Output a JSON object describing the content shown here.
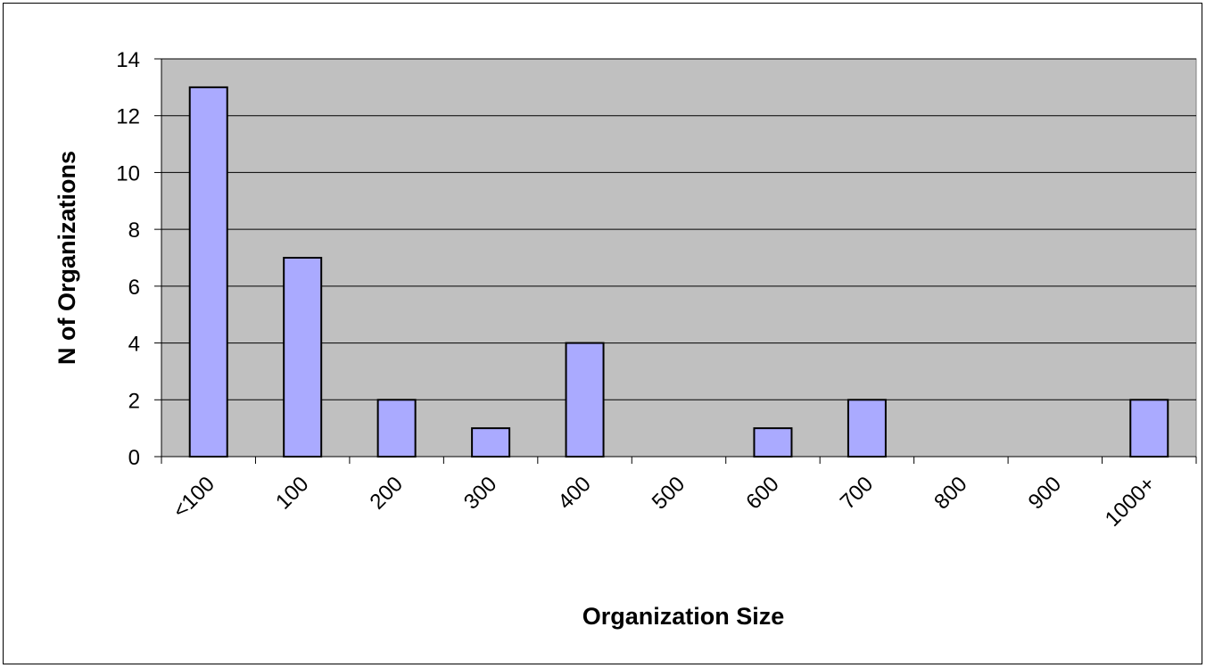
{
  "chart_data": {
    "type": "bar",
    "x_label": "Organization Size",
    "y_label": "N of Organizations",
    "categories": [
      "<100",
      "100",
      "200",
      "300",
      "400",
      "500",
      "600",
      "700",
      "800",
      "900",
      "1000+"
    ],
    "values": [
      13,
      7,
      2,
      1,
      4,
      0,
      1,
      2,
      0,
      0,
      2
    ],
    "color": "#aaaaff",
    "ylim": [
      0,
      14
    ],
    "yticks": [
      0,
      2,
      4,
      6,
      8,
      10,
      12,
      14
    ],
    "grid": true
  }
}
